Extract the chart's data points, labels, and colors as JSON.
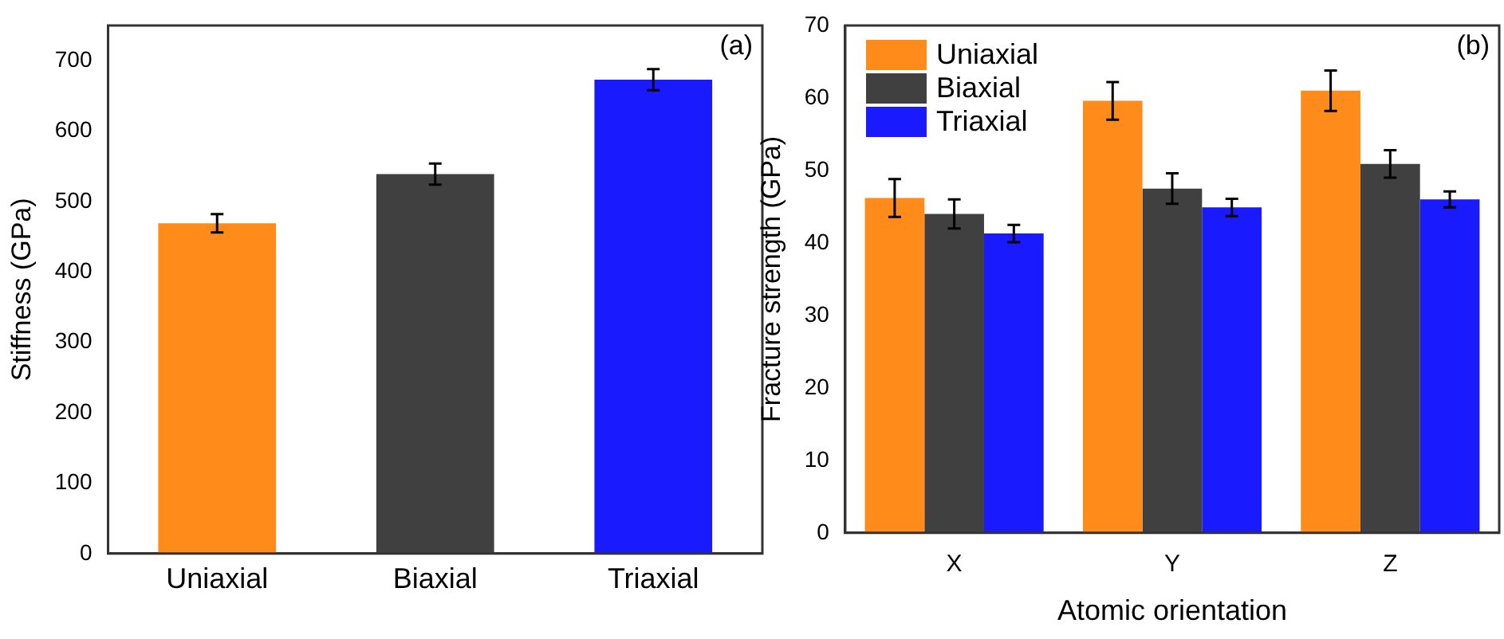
{
  "chart_data": [
    {
      "type": "bar",
      "ylabel": "Stiffness (GPa)",
      "categories": [
        "Uniaxial",
        "Biaxial",
        "Triaxial"
      ],
      "values": [
        469,
        539,
        673
      ],
      "errors": [
        13,
        15,
        15
      ],
      "colors": [
        "#ff8c1a",
        "#404040",
        "#1a1aff"
      ],
      "ylim": [
        0,
        750
      ],
      "yticks": [
        0,
        100,
        200,
        300,
        400,
        500,
        600,
        700
      ],
      "grid": false,
      "legend": false,
      "annotations": [
        "(a)"
      ]
    },
    {
      "type": "bar",
      "xlabel": "Atomic orientation",
      "ylabel": "Fracture strength (GPa)",
      "categories": [
        "X",
        "Y",
        "Z"
      ],
      "series": [
        {
          "name": "Uniaxial",
          "color": "#ff8c1a",
          "values": [
            46.2,
            59.6,
            61.0
          ],
          "errors": [
            2.6,
            2.6,
            2.8
          ]
        },
        {
          "name": "Biaxial",
          "color": "#404040",
          "values": [
            44.0,
            47.5,
            50.9
          ],
          "errors": [
            2.0,
            2.1,
            1.9
          ]
        },
        {
          "name": "Triaxial",
          "color": "#1a1aff",
          "values": [
            41.3,
            44.9,
            46.0
          ],
          "errors": [
            1.2,
            1.2,
            1.1
          ]
        }
      ],
      "ylim": [
        0,
        70
      ],
      "yticks": [
        0,
        10,
        20,
        30,
        40,
        50,
        60,
        70
      ],
      "grid": false,
      "legend": "top left",
      "annotations": [
        "(b)"
      ]
    }
  ]
}
